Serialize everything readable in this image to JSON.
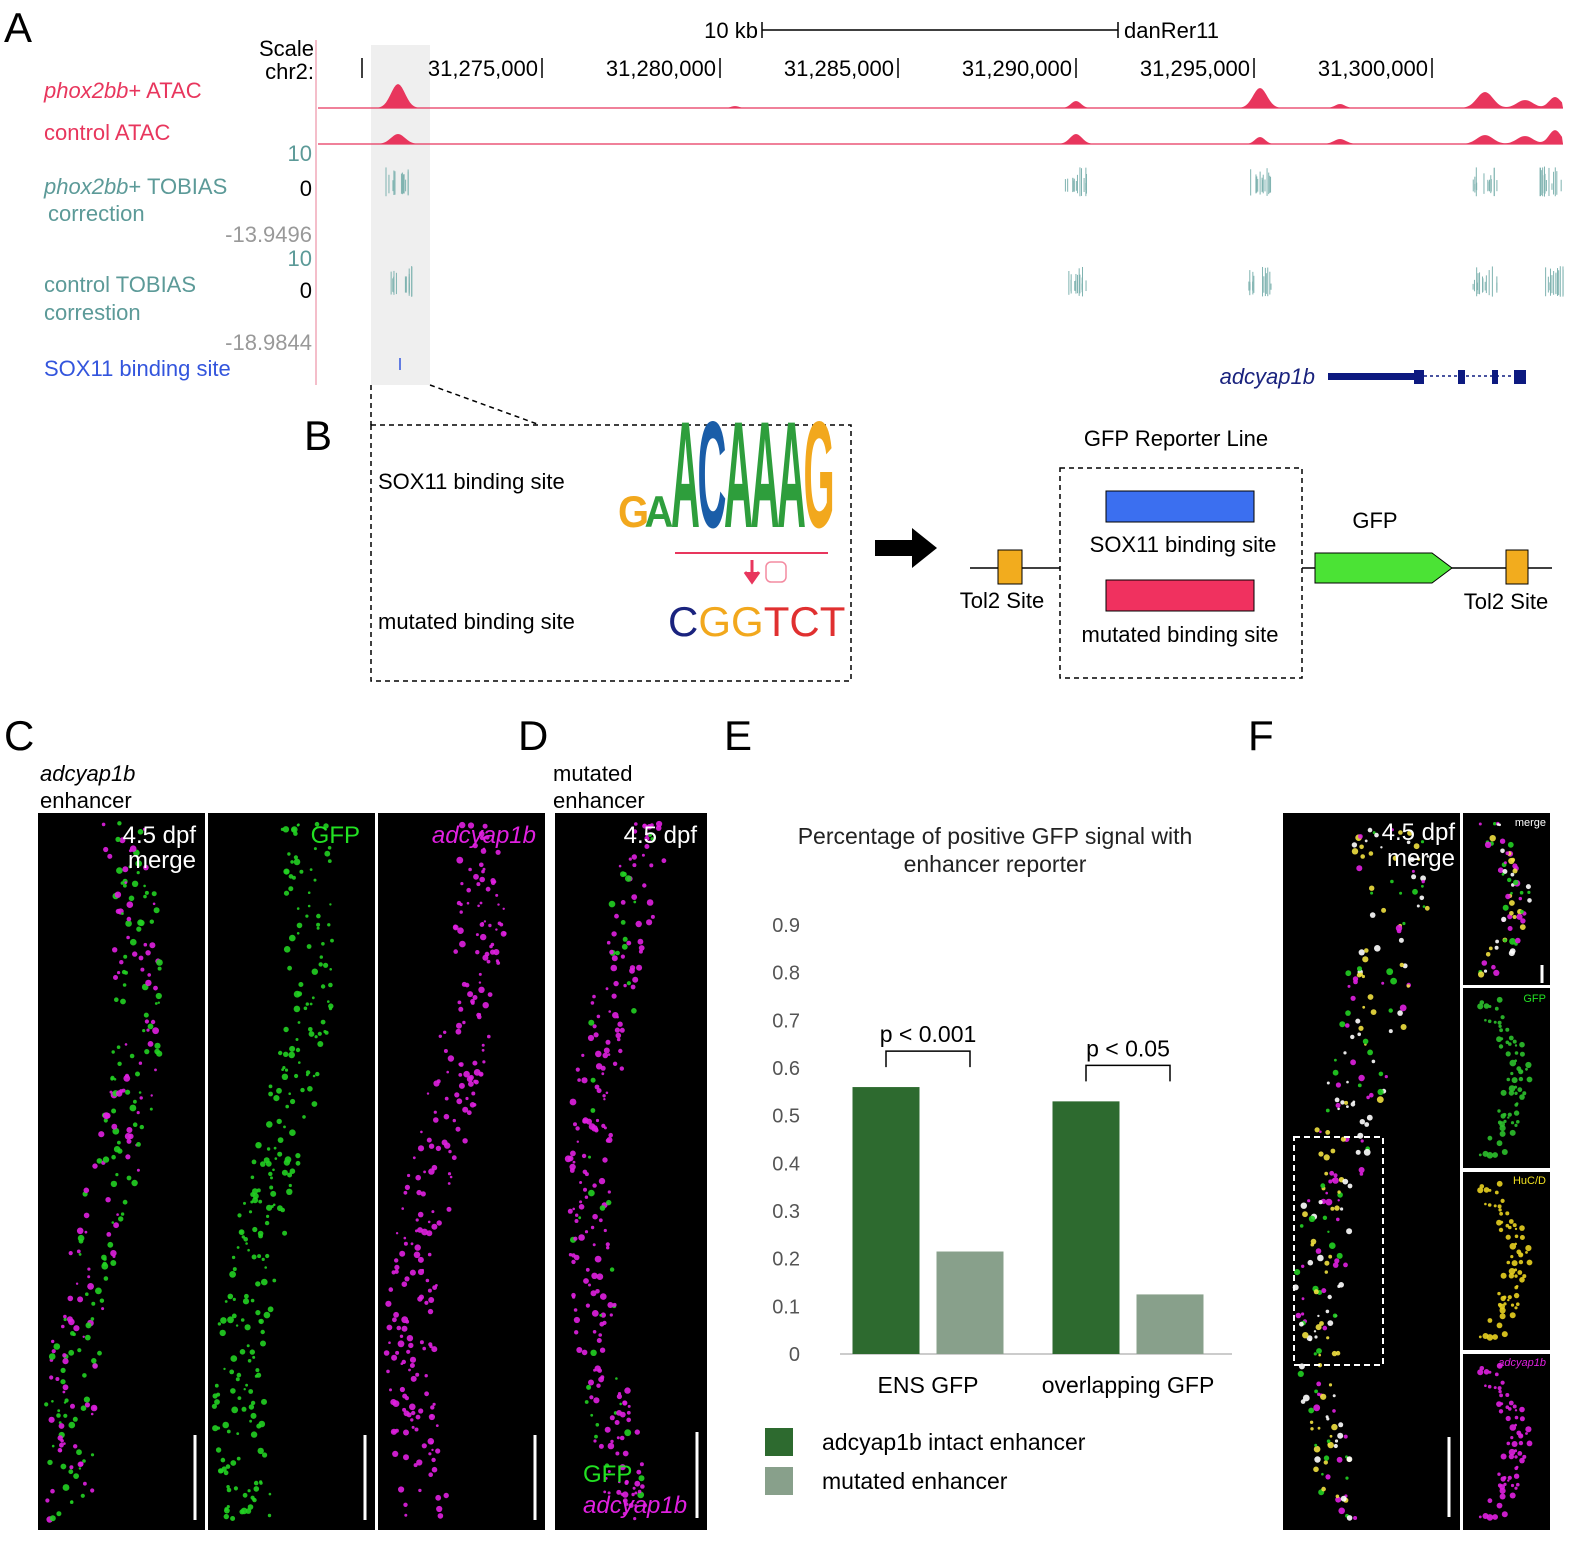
{
  "panel_a": {
    "letter": "A",
    "scale_label": "Scale",
    "chrom_label": "chr2:",
    "scale_bar": "10 kb",
    "assembly": "danRer11",
    "coordinates": [
      "31,275,000",
      "31,280,000",
      "31,285,000",
      "31,290,000",
      "31,295,000",
      "31,300,000"
    ],
    "tracks": {
      "phox2bb_atac": {
        "gene": "phox2bb",
        "rest": "+ ATAC"
      },
      "control_atac": "control ATAC",
      "phox2bb_tobias": {
        "max": "10",
        "zero": "0",
        "gene": "phox2bb",
        "rest": "+ TOBIAS",
        "line2": "correction",
        "min": "-13.9496"
      },
      "control_tobias": {
        "max": "10",
        "zero": "0",
        "line1": "control TOBIAS",
        "line2": "correstion",
        "min": "-18.9844"
      },
      "sox11_site": "SOX11 binding site"
    },
    "gene": "adcyap1b"
  },
  "panel_b": {
    "letter": "B",
    "site_label": "SOX11 binding site",
    "mutated_label": "mutated binding site",
    "logo_letters": [
      "G",
      "A",
      "A",
      "C",
      "A",
      "A",
      "A",
      "G"
    ],
    "mutated_letters": [
      "C",
      "G",
      "G",
      "T",
      "C",
      "T"
    ],
    "reporter_title": "GFP Reporter Line",
    "reporter_site": "SOX11 binding site",
    "reporter_mutated": "mutated binding site",
    "gfp": "GFP",
    "tol2_left": "Tol2 Site",
    "tol2_right": "Tol2 Site"
  },
  "panel_c": {
    "letter": "C",
    "line1": "adcyap1b",
    "line2": "enhancer",
    "stage": "4.5 dpf",
    "merge": "merge",
    "gfp": "GFP",
    "gene": "adcyap1b"
  },
  "panel_d": {
    "letter": "D",
    "line1": "mutated",
    "line2": "enhancer",
    "stage": "4.5 dpf",
    "gfp": "GFP",
    "gene": "adcyap1b"
  },
  "panel_f": {
    "letter": "F",
    "stage": "4.5 dpf",
    "merge": "merge",
    "inset_merge": "merge",
    "inset_gfp": "GFP",
    "inset_huc": "HuC/D",
    "inset_gene": "adcyap1b"
  },
  "panel_e_letter": "E",
  "chart_data": {
    "type": "bar",
    "title": "Percentage of positive GFP signal with enhancer reporter",
    "categories": [
      "ENS GFP",
      "overlapping GFP"
    ],
    "series": [
      {
        "name": "adcyap1b intact enhancer",
        "color": "#2d6a2f",
        "values": [
          0.56,
          0.53
        ]
      },
      {
        "name": "mutated enhancer",
        "color": "#88a08b",
        "values": [
          0.215,
          0.125
        ]
      }
    ],
    "annotations": [
      "p < 0.001",
      "p < 0.05"
    ],
    "ylim": [
      0,
      0.9
    ],
    "yticks": [
      0,
      0.1,
      0.2,
      0.3,
      0.4,
      0.5,
      0.6,
      0.7,
      0.8,
      0.9
    ],
    "grid": false
  }
}
